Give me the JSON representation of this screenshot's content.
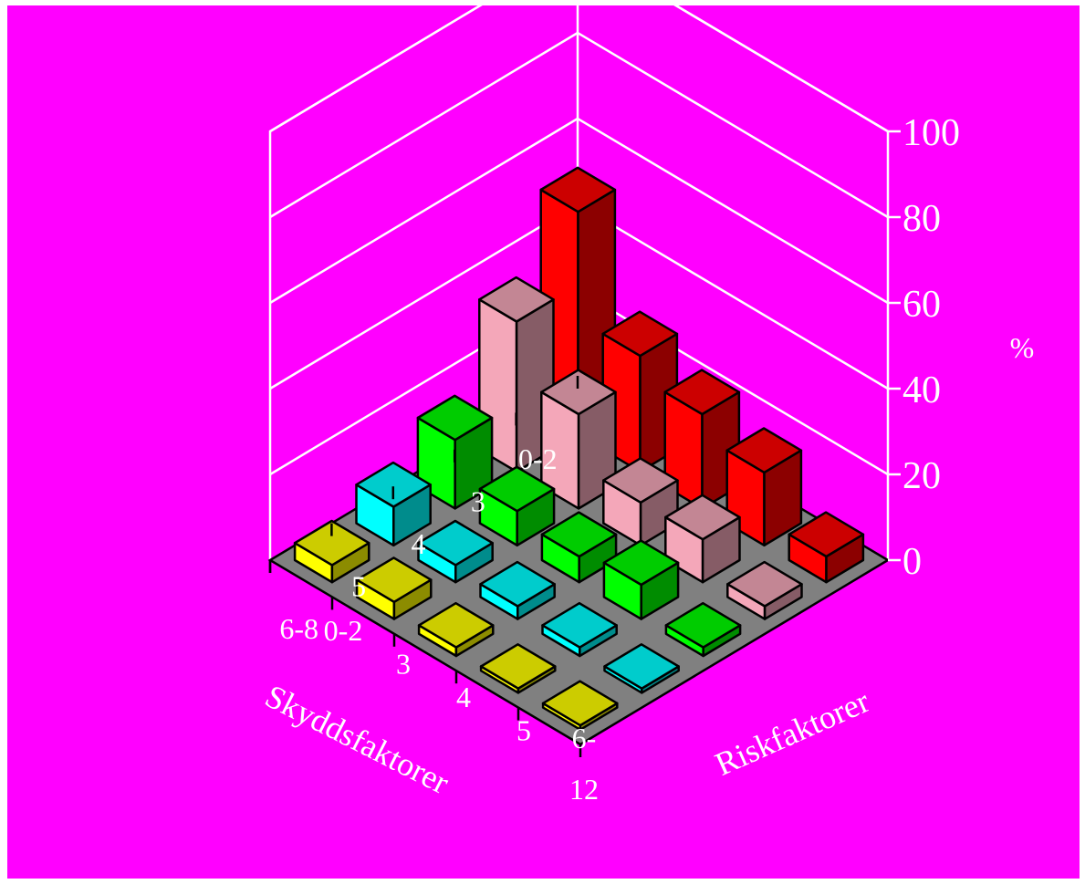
{
  "chart_data": {
    "type": "bar3d",
    "ylabel": "%",
    "zlim": [
      0,
      100
    ],
    "z_ticks": [
      "0",
      "20",
      "40",
      "60",
      "80",
      "100"
    ],
    "grid": true,
    "floor_color": "#808080",
    "background_color": "#ff00ff",
    "series_axis": {
      "label": "Skyddsfaktorer",
      "categories": [
        "0-2",
        "3",
        "4",
        "5",
        "6-8"
      ],
      "colors": [
        "#ff0000",
        "#f4a7b9",
        "#00ff00",
        "#00ffff",
        "#ffff00"
      ]
    },
    "category_axis": {
      "label": "Riskfaktorer",
      "categories": [
        "0-2",
        "3",
        "4",
        "5",
        "6-12"
      ],
      "tick_lines": [
        [
          "0-2"
        ],
        [
          "3"
        ],
        [
          "4"
        ],
        [
          "5"
        ],
        [
          "6-",
          "12"
        ]
      ]
    },
    "series": [
      {
        "name": "0-2",
        "color": "#ff0000",
        "values": [
          52,
          27,
          22,
          17,
          6
        ]
      },
      {
        "name": "3",
        "color": "#f4a7b9",
        "values": [
          35,
          22,
          10,
          10,
          3
        ]
      },
      {
        "name": "4",
        "color": "#00ff00",
        "values": [
          16,
          8,
          6,
          8,
          2
        ]
      },
      {
        "name": "5",
        "color": "#00ffff",
        "values": [
          9,
          4,
          3,
          2,
          1
        ]
      },
      {
        "name": "6-8",
        "color": "#ffff00",
        "values": [
          4,
          4,
          2,
          1,
          1
        ]
      }
    ]
  }
}
